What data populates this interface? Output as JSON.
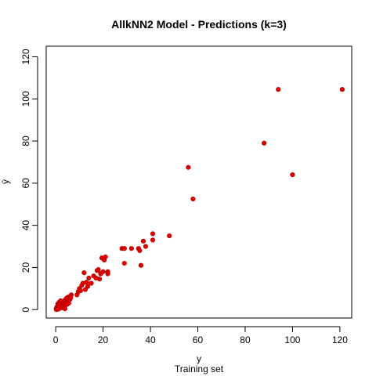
{
  "chart_data": {
    "type": "scatter",
    "title": "AllkNN2 Model - Predictions (k=3)",
    "xlabel": "y",
    "ylabel": "ŷ",
    "caption": "Training set",
    "xlim": [
      -4,
      125
    ],
    "ylim": [
      -4,
      125
    ],
    "xticks": [
      0,
      20,
      40,
      60,
      80,
      100,
      120
    ],
    "yticks": [
      0,
      20,
      40,
      60,
      80,
      100,
      120
    ],
    "grid": false,
    "point_color": "#dd0000",
    "points": [
      [
        0.2,
        0.3
      ],
      [
        0.4,
        1.1
      ],
      [
        0.6,
        0.5
      ],
      [
        0.8,
        1.6
      ],
      [
        1.0,
        0.8
      ],
      [
        1.2,
        2.0
      ],
      [
        1.4,
        1.2
      ],
      [
        1.6,
        0.6
      ],
      [
        1.8,
        2.4
      ],
      [
        2.0,
        1.5
      ],
      [
        2.2,
        3.0
      ],
      [
        2.4,
        1.8
      ],
      [
        2.6,
        2.6
      ],
      [
        2.8,
        0.9
      ],
      [
        3.0,
        3.4
      ],
      [
        3.2,
        2.2
      ],
      [
        3.4,
        4.0
      ],
      [
        3.6,
        2.8
      ],
      [
        3.8,
        1.4
      ],
      [
        4.0,
        4.6
      ],
      [
        4.2,
        3.2
      ],
      [
        4.4,
        5.2
      ],
      [
        4.6,
        3.8
      ],
      [
        4.8,
        2.5
      ],
      [
        5.0,
        5.8
      ],
      [
        5.2,
        4.4
      ],
      [
        5.5,
        3.0
      ],
      [
        5.8,
        6.2
      ],
      [
        6.0,
        4.8
      ],
      [
        6.3,
        5.5
      ],
      [
        6.6,
        7.0
      ],
      [
        0.3,
        0.0
      ],
      [
        1.1,
        0.2
      ],
      [
        2.7,
        1.0
      ],
      [
        3.9,
        0.4
      ],
      [
        0.9,
        2.7
      ],
      [
        1.5,
        3.6
      ],
      [
        2.1,
        4.2
      ],
      [
        9,
        7
      ],
      [
        9.5,
        8.5
      ],
      [
        10,
        10
      ],
      [
        10.5,
        9
      ],
      [
        11,
        11.5
      ],
      [
        11.5,
        12.5
      ],
      [
        12,
        17.5
      ],
      [
        12.5,
        9.5
      ],
      [
        13,
        13
      ],
      [
        13.5,
        11
      ],
      [
        14,
        15
      ],
      [
        15,
        12.5
      ],
      [
        16,
        16
      ],
      [
        17,
        15
      ],
      [
        17.5,
        18.5
      ],
      [
        18,
        19
      ],
      [
        18.5,
        14.5
      ],
      [
        19,
        17
      ],
      [
        19.5,
        24.5
      ],
      [
        20,
        18
      ],
      [
        20.5,
        23.5
      ],
      [
        21,
        25
      ],
      [
        22,
        17
      ],
      [
        22,
        18
      ],
      [
        28,
        29
      ],
      [
        29,
        29
      ],
      [
        29,
        22
      ],
      [
        32,
        29
      ],
      [
        35,
        29
      ],
      [
        35.5,
        28
      ],
      [
        36,
        21
      ],
      [
        37,
        32.5
      ],
      [
        38,
        30
      ],
      [
        41,
        33
      ],
      [
        41,
        36
      ],
      [
        48,
        35
      ],
      [
        56,
        67.5
      ],
      [
        58,
        52.5
      ],
      [
        88,
        79
      ],
      [
        94,
        104.5
      ],
      [
        100,
        64
      ],
      [
        121,
        104.5
      ]
    ]
  }
}
